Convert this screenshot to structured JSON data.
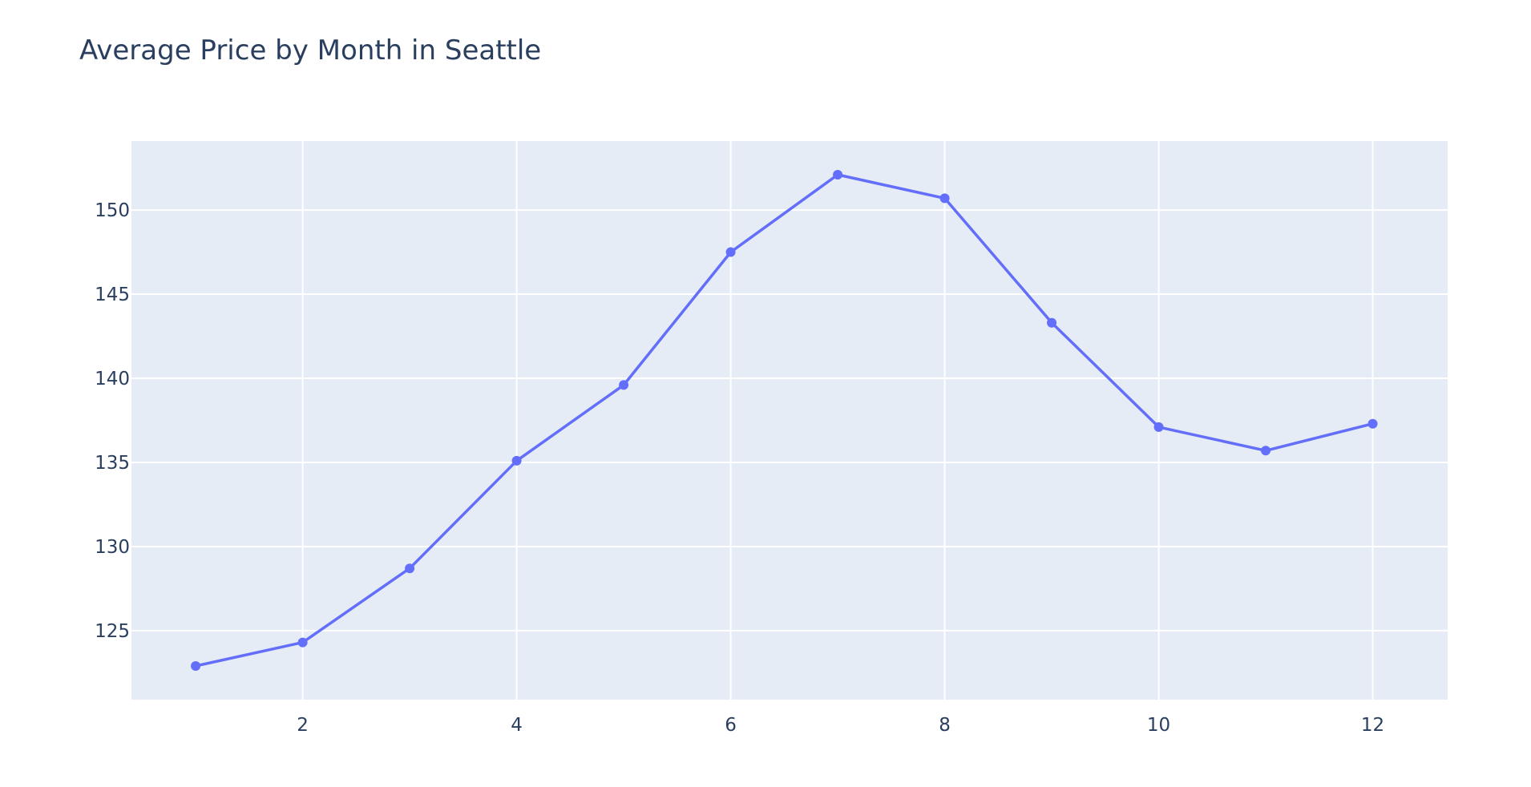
{
  "chart_data": {
    "type": "line",
    "title": "Average Price by Month in Seattle",
    "xlabel": "",
    "ylabel": "",
    "x": [
      1,
      2,
      3,
      4,
      5,
      6,
      7,
      8,
      9,
      10,
      11,
      12
    ],
    "series": [
      {
        "values": [
          122.9,
          124.3,
          128.7,
          135.1,
          139.6,
          147.5,
          152.1,
          150.7,
          143.3,
          137.1,
          135.7,
          137.3
        ]
      }
    ],
    "xlim": [
      0.4,
      12.7
    ],
    "ylim": [
      120.9,
      154.1
    ],
    "x_ticks": [
      2,
      4,
      6,
      8,
      10,
      12
    ],
    "y_ticks": [
      125,
      130,
      135,
      140,
      145,
      150
    ],
    "grid": true,
    "legend": "none",
    "colors": {
      "line": "#636efa",
      "plot_background": "#e5ecf6",
      "grid": "#ffffff",
      "text": "#2a3f5f"
    }
  }
}
